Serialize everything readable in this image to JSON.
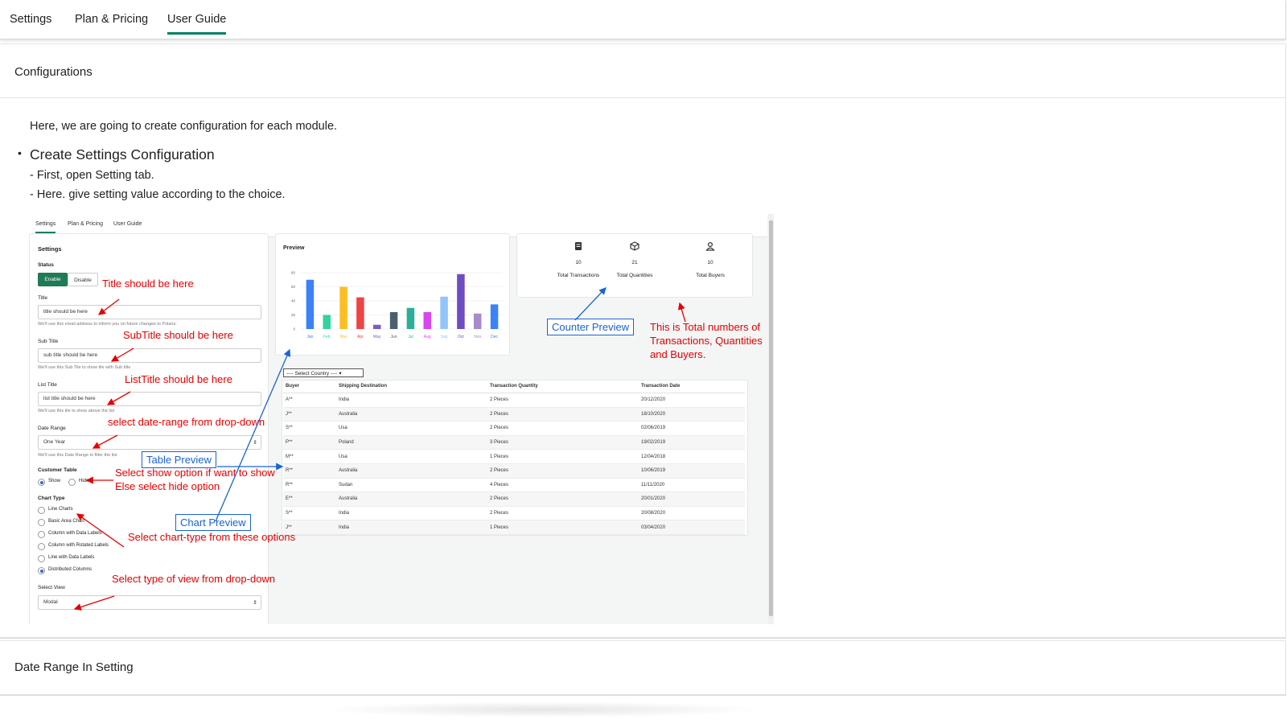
{
  "tabs": [
    {
      "label": "Settings"
    },
    {
      "label": "Plan & Pricing"
    },
    {
      "label": "User Guide"
    }
  ],
  "section1": {
    "heading": "Configurations",
    "intro": "Here, we are going to create configuration for each module.",
    "bullet": "Create Settings Configuration",
    "steps": [
      "- First, open Setting tab.",
      "- Here. give setting value according to the choice."
    ]
  },
  "section2": {
    "heading": "Date Range In Setting"
  },
  "screenshot": {
    "tabs": [
      "Settings",
      "Plan & Pricing",
      "User Guide"
    ],
    "settings": {
      "heading": "Settings",
      "status_label": "Status",
      "enable": "Enable",
      "disable": "Disable",
      "title_label": "Title",
      "title_value": "title should be here",
      "title_hint": "We'll use this email address to inform you on future changes to Polaris.",
      "subtitle_label": "Sub Title",
      "subtitle_value": "sub title should be here",
      "subtitle_hint": "We'll use this Sub Tile to show tile with Sub title",
      "listtitle_label": "List Title",
      "listtitle_value": "list title should be here",
      "listtitle_hint": "We'll use this tile to show above the list",
      "daterange_label": "Date Range",
      "daterange_value": "One Year",
      "daterange_hint": "We'll use this Date Range to filter the list",
      "customer_table_label": "Customer Table",
      "show": "Show",
      "hide": "Hide",
      "chart_type_label": "Chart Type",
      "chart_types": [
        "Line Charts",
        "Basic Area Chart",
        "Column with Data Labels",
        "Column with Rotated Labels",
        "Line with Data Labels",
        "Distributed Columns"
      ],
      "select_view_label": "Select View",
      "select_view_value": "Modal"
    },
    "preview": {
      "heading": "Preview",
      "y_ticks": [
        "80",
        "60",
        "40",
        "20",
        "0"
      ]
    },
    "counters": [
      {
        "icon": "receipt-icon",
        "value": "10",
        "label": "Total Transactions"
      },
      {
        "icon": "box-icon",
        "value": "21",
        "label": "Total Quantities"
      },
      {
        "icon": "person-icon",
        "value": "10",
        "label": "Total Buyers"
      }
    ],
    "select_country": "---- Select Country ----",
    "table": {
      "headers": [
        "Buyer",
        "Shipping Destination",
        "Transaction Quantity",
        "Transaction Date"
      ],
      "rows": [
        [
          "A**",
          "India",
          "2 Pieces",
          "20/12/2020"
        ],
        [
          "J**",
          "Australia",
          "2 Pieces",
          "18/10/2020"
        ],
        [
          "S**",
          "Usa",
          "2 Pieces",
          "02/06/2019"
        ],
        [
          "P**",
          "Poland",
          "3 Pieces",
          "19/02/2019"
        ],
        [
          "M**",
          "Usa",
          "1 Pieces",
          "12/04/2018"
        ],
        [
          "R**",
          "Australia",
          "2 Pieces",
          "10/06/2019"
        ],
        [
          "R**",
          "Sudan",
          "4 Pieces",
          "11/11/2020"
        ],
        [
          "E**",
          "Australia",
          "2 Pieces",
          "20/01/2020"
        ],
        [
          "S**",
          "India",
          "2 Pieces",
          "20/08/2020"
        ],
        [
          "J**",
          "India",
          "1 Pieces",
          "03/04/2020"
        ]
      ]
    },
    "annotations": {
      "title": "Title should be here",
      "subtitle": "SubTitle should be here",
      "listtitle": "ListTitle should be here",
      "daterange": "select date-range from drop-down",
      "table_preview": "Table Preview",
      "show_option_1": "Select show option if want to show",
      "show_option_2": "Else select hide option",
      "chart_preview": "Chart Preview",
      "chart_type": "Select chart-type from these options",
      "view": "Select type of view from drop-down",
      "counter_preview": "Counter Preview",
      "totals_1": "This is Total numbers of",
      "totals_2": "Transactions, Quantities",
      "totals_3": "and Buyers."
    }
  },
  "chart_data": {
    "type": "bar",
    "categories": [
      "Jan",
      "Feb",
      "Mar",
      "Apr",
      "May",
      "Jun",
      "Jul",
      "Aug",
      "Sep",
      "Oct",
      "Nov",
      "Dec"
    ],
    "values": [
      70,
      20,
      60,
      45,
      6,
      24,
      30,
      24,
      46,
      78,
      22,
      35
    ],
    "colors": [
      "#3b82f6",
      "#34d399",
      "#fbbf24",
      "#ef4444",
      "#7c5cc4",
      "#4b5f6e",
      "#2bae9a",
      "#d946ef",
      "#93c5fd",
      "#6d4cc4",
      "#a78bca",
      "#3b82f6"
    ],
    "ylim": [
      0,
      80
    ],
    "title": "",
    "xlabel": "",
    "ylabel": ""
  }
}
